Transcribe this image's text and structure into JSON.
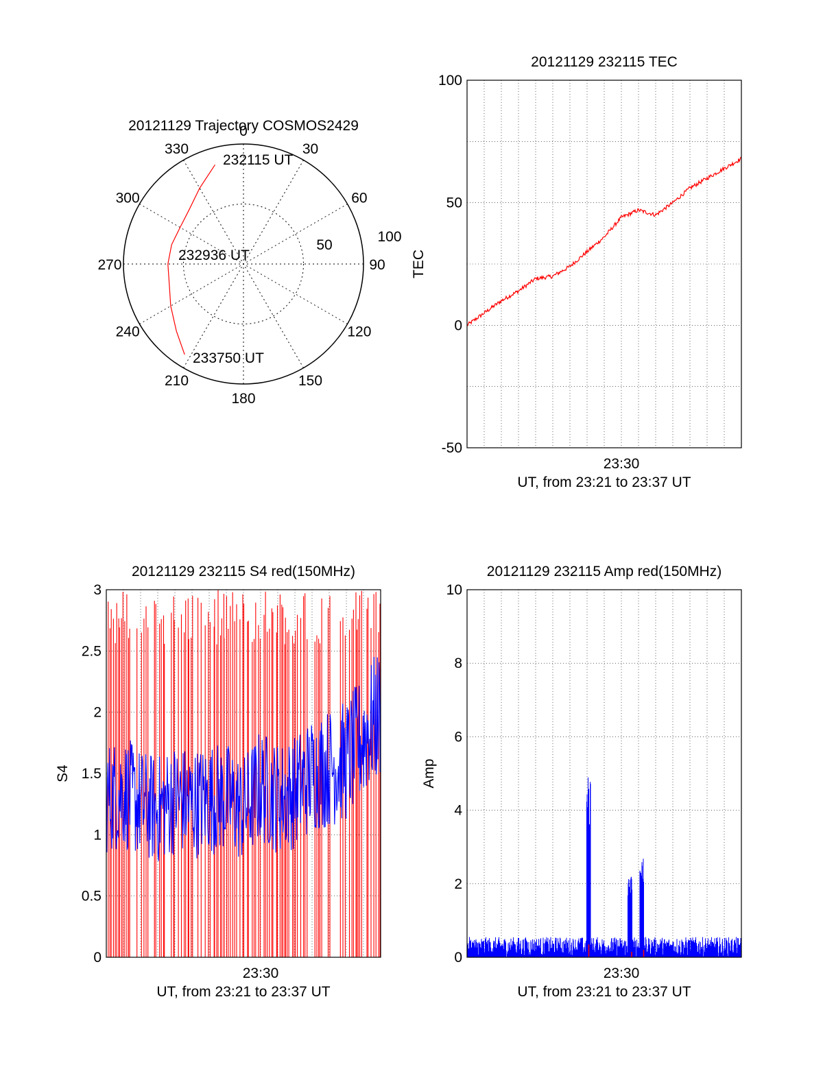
{
  "colors": {
    "red": "#ff0000",
    "blue": "#0000ff",
    "axis": "#000000",
    "grid": "#000000"
  },
  "chart_data": [
    {
      "id": "trajectory",
      "type": "polar",
      "title": "20121129 Trajectory COSMOS2429",
      "azimuth_labels": [
        "0",
        "30",
        "60",
        "90",
        "120",
        "150",
        "180",
        "210",
        "240",
        "270",
        "300",
        "330"
      ],
      "radial_labels": [
        "50",
        "100"
      ],
      "radial_max": 100,
      "grid": true,
      "series": [
        {
          "color": "#ff0000",
          "points": [
            {
              "az": 344,
              "r": 86
            },
            {
              "az": 330,
              "r": 73
            },
            {
              "az": 315,
              "r": 64
            },
            {
              "az": 300,
              "r": 61
            },
            {
              "az": 285,
              "r": 62
            },
            {
              "az": 270,
              "r": 63
            },
            {
              "az": 255,
              "r": 64
            },
            {
              "az": 240,
              "r": 70
            },
            {
              "az": 225,
              "r": 79
            },
            {
              "az": 213,
              "r": 90
            }
          ]
        }
      ],
      "annotations": [
        {
          "text": "232115 UT",
          "az": 344,
          "r": 86
        },
        {
          "text": "232936 UT",
          "az": 270,
          "r": 63
        },
        {
          "text": "233750 UT",
          "az": 213,
          "r": 90
        }
      ]
    },
    {
      "id": "tec",
      "type": "line",
      "title": "20121129 232115 TEC",
      "ylabel": "TEC",
      "xlabel": "UT, from 23:21 to 23:37 UT",
      "xtick_label": "23:30",
      "ylim": [
        -50,
        100
      ],
      "yticks": [
        "100",
        "50",
        "0",
        "-50"
      ],
      "grid": true,
      "x_minutes": [
        0,
        1,
        2,
        3,
        4,
        5,
        6,
        7,
        8,
        9,
        10,
        11,
        12,
        13,
        14,
        15,
        16
      ],
      "series": [
        {
          "color": "#ff0000",
          "values": [
            0,
            5,
            10,
            14,
            19,
            20,
            24,
            30,
            36,
            44,
            47,
            45,
            50,
            56,
            60,
            64,
            68
          ]
        }
      ]
    },
    {
      "id": "s4",
      "type": "line",
      "title": "20121129 232115 S4 red(150MHz)",
      "ylabel": "S4",
      "xlabel": "UT, from 23:21 to 23:37 UT",
      "xtick_label": "23:30",
      "ylim": [
        0,
        3
      ],
      "yticks": [
        "3",
        "2.5",
        "2",
        "1.5",
        "1",
        "0.5",
        "0"
      ],
      "grid": true,
      "series": [
        {
          "color": "#ff0000",
          "values_range": [
            0,
            3
          ]
        },
        {
          "color": "#0000ff",
          "x_minutes": [
            0,
            1,
            2,
            3,
            4,
            5,
            6,
            7,
            8,
            9,
            10,
            11,
            12,
            13,
            14,
            15,
            16
          ],
          "values": [
            1.3,
            1.35,
            1.25,
            1.2,
            1.3,
            1.25,
            1.3,
            1.3,
            1.2,
            1.4,
            1.3,
            1.35,
            1.5,
            1.55,
            1.6,
            1.8,
            2.0
          ]
        }
      ]
    },
    {
      "id": "amp",
      "type": "line",
      "title": "20121129 232115 Amp red(150MHz)",
      "ylabel": "Amp",
      "xlabel": "UT, from 23:21 to 23:37 UT",
      "xtick_label": "23:30",
      "ylim": [
        0,
        10
      ],
      "yticks": [
        "10",
        "8",
        "6",
        "4",
        "2",
        "0"
      ],
      "grid": true,
      "series": [
        {
          "color": "#0000ff",
          "baseline": 0.35,
          "peaks": [
            {
              "x_minutes": 7.1,
              "value": 5.0
            },
            {
              "x_minutes": 9.5,
              "value": 2.3
            },
            {
              "x_minutes": 10.2,
              "value": 2.9
            }
          ]
        },
        {
          "color": "#ff0000",
          "peaks": [
            {
              "x_minutes": 7.1,
              "value": 0.35
            },
            {
              "x_minutes": 9.6,
              "value": 0.15
            },
            {
              "x_minutes": 10.3,
              "value": 0.2
            }
          ]
        }
      ]
    }
  ]
}
